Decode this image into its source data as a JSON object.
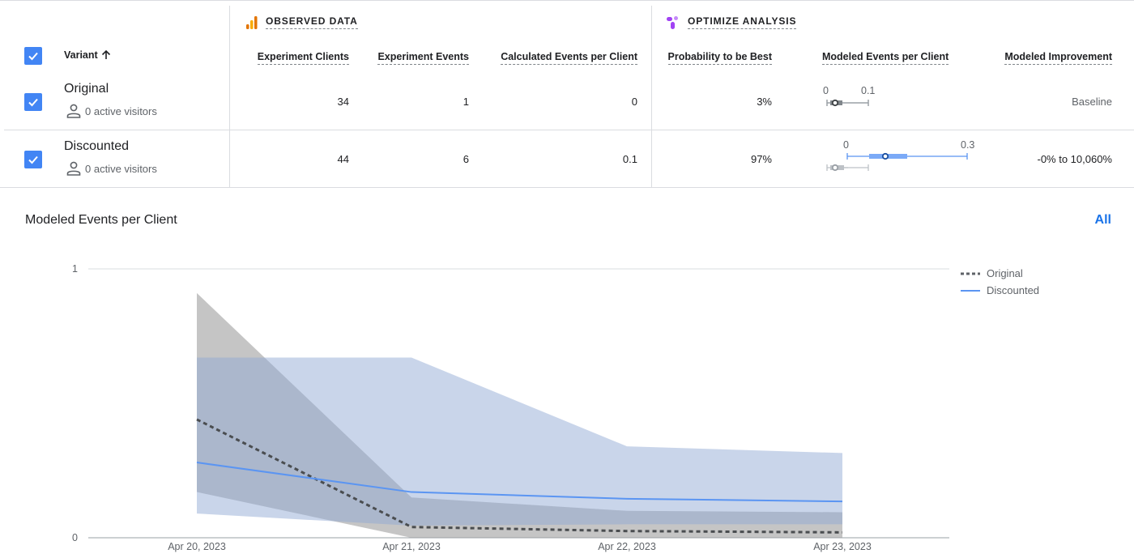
{
  "table": {
    "sections": {
      "observed": "OBSERVED DATA",
      "optimize": "OPTIMIZE ANALYSIS"
    },
    "headers": {
      "variant": "Variant",
      "experiment_clients": "Experiment Clients",
      "experiment_events": "Experiment Events",
      "calculated_events": "Calculated Events per Client",
      "probability_best": "Probability to be Best",
      "modeled_events": "Modeled Events per Client",
      "modeled_improvement": "Modeled Improvement"
    },
    "rows": [
      {
        "name": "Original",
        "visitors": "0 active visitors",
        "clients": "34",
        "events": "1",
        "calculated": "0",
        "probability": "3%",
        "interval_min": "0",
        "interval_max": "0.1",
        "improvement": "Baseline"
      },
      {
        "name": "Discounted",
        "visitors": "0 active visitors",
        "clients": "44",
        "events": "6",
        "calculated": "0.1",
        "probability": "97%",
        "interval_min": "0",
        "interval_max": "0.3",
        "improvement": "-0% to 10,060%"
      }
    ]
  },
  "chart_section": {
    "title": "Modeled Events per Client",
    "all_link": "All"
  },
  "colors": {
    "accent": "#1a73e8",
    "checkbox": "#4285f4",
    "original": "#5f6368",
    "discounted": "#5b95f2",
    "discounted_band": "#c9d5e8",
    "original_band": "#9e9e9e"
  },
  "chart_data": {
    "type": "line",
    "x": [
      "Apr 20, 2023",
      "Apr 21, 2023",
      "Apr 22, 2023",
      "Apr 23, 2023"
    ],
    "y_ticks": [
      "0",
      "1"
    ],
    "ylim": [
      0,
      1
    ],
    "legend_position": "top-right",
    "series": [
      {
        "name": "Original",
        "style": "dotted",
        "values": [
          0.44,
          0.04,
          0.025,
          0.02
        ],
        "band_low": [
          0.17,
          0.0,
          0.0,
          0.0
        ],
        "band_high": [
          0.91,
          0.15,
          0.1,
          0.095
        ]
      },
      {
        "name": "Discounted",
        "style": "solid",
        "values": [
          0.28,
          0.17,
          0.145,
          0.135
        ],
        "band_low": [
          0.09,
          0.045,
          0.05,
          0.05
        ],
        "band_high": [
          0.67,
          0.67,
          0.34,
          0.315
        ]
      }
    ]
  }
}
